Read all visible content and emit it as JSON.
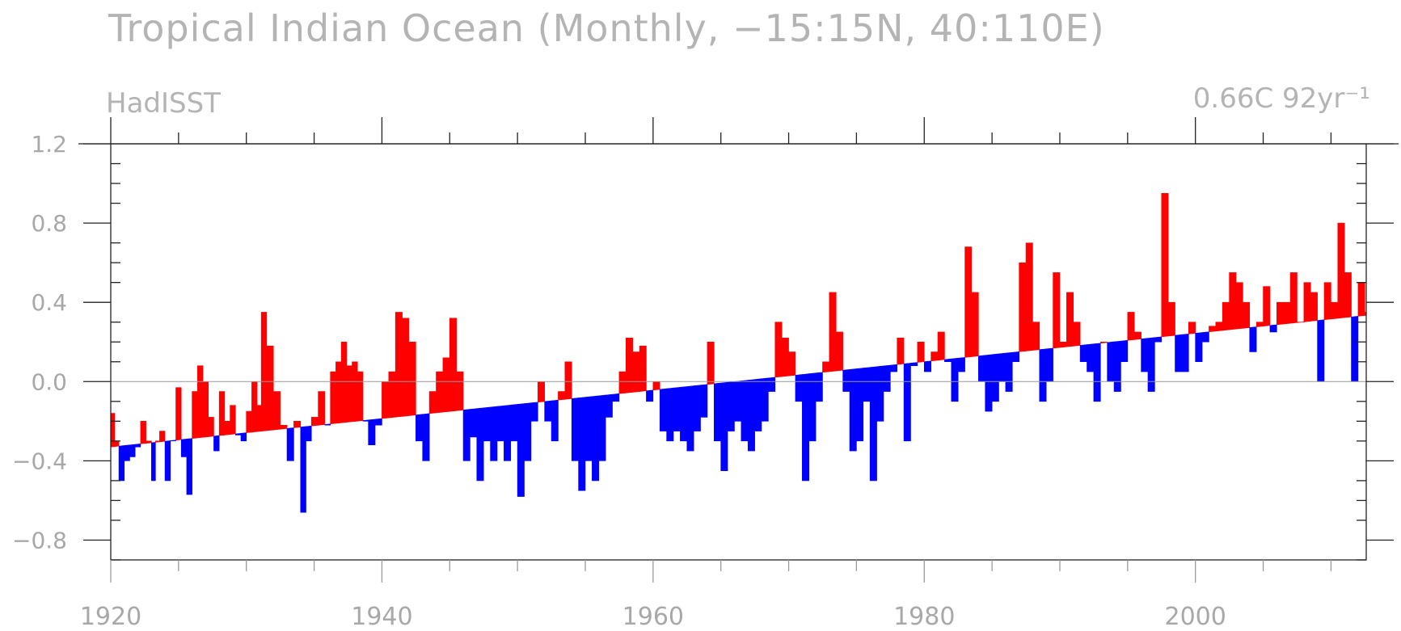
{
  "chart_data": {
    "type": "area",
    "title": "Tropical Indian Ocean (Monthly, −15:15N, 40:110E)",
    "subtitle_left": "HadISST",
    "subtitle_right": "0.66C 92yr⁻¹",
    "xlim": [
      1920,
      2012.6
    ],
    "ylim": [
      -0.9,
      1.2
    ],
    "x_ticks": [
      1920,
      1940,
      1960,
      1980,
      2000
    ],
    "x_tick_labels": [
      "1920",
      "1940",
      "1960",
      "1980",
      "2000"
    ],
    "y_ticks": [
      1.2,
      0.8,
      0.4,
      0.0,
      -0.4,
      -0.8
    ],
    "y_tick_labels": [
      "1.2",
      "0.8",
      "0.4",
      "0.0",
      "−0.4",
      "−0.8"
    ],
    "trend": {
      "x": [
        1920,
        2012
      ],
      "y": [
        -0.33,
        0.33
      ]
    },
    "zero_line": 0.0,
    "colors": {
      "above_trend": "#ff0000",
      "below_trend": "#0000ff",
      "axis": "#222222",
      "text": "#b4b4b4",
      "zero_line": "#999999"
    },
    "series": [
      {
        "x": [
          1920.0,
          1920.3,
          1920.6,
          1921.0,
          1921.4,
          1921.8,
          1922.2,
          1922.6,
          1923.0,
          1923.3,
          1923.6,
          1924.0,
          1924.4,
          1924.8,
          1925.2,
          1925.6,
          1926.0,
          1926.4,
          1926.8,
          1927.2,
          1927.6,
          1928.0,
          1928.4,
          1928.8,
          1929.2,
          1929.6,
          1930.0,
          1930.4,
          1930.8,
          1931.1,
          1931.5,
          1932.0,
          1932.5,
          1933.0,
          1933.5,
          1934.0,
          1934.4,
          1934.8,
          1935.3,
          1935.8,
          1936.2,
          1936.6,
          1937.0,
          1937.4,
          1937.8,
          1938.2,
          1938.6,
          1939.0,
          1939.5,
          1940.0,
          1940.5,
          1941.0,
          1941.5,
          1942.0,
          1942.5,
          1943.0,
          1943.5,
          1944.0,
          1944.5,
          1945.0,
          1945.5,
          1946.0,
          1946.5,
          1947.0,
          1947.5,
          1948.0,
          1948.5,
          1949.0,
          1949.5,
          1950.0,
          1950.5,
          1951.0,
          1951.5,
          1952.0,
          1952.5,
          1953.0,
          1953.5,
          1954.0,
          1954.5,
          1955.0,
          1955.5,
          1956.0,
          1956.5,
          1957.0,
          1957.5,
          1958.0,
          1958.5,
          1959.0,
          1959.5,
          1960.0,
          1960.5,
          1961.0,
          1961.5,
          1962.0,
          1962.5,
          1963.0,
          1963.5,
          1964.0,
          1964.5,
          1965.0,
          1965.5,
          1966.0,
          1966.5,
          1967.0,
          1967.5,
          1968.0,
          1968.5,
          1969.0,
          1969.5,
          1970.0,
          1970.5,
          1971.0,
          1971.5,
          1972.0,
          1972.5,
          1973.0,
          1973.5,
          1974.0,
          1974.5,
          1975.0,
          1975.5,
          1976.0,
          1976.5,
          1977.0,
          1977.5,
          1978.0,
          1978.5,
          1979.0,
          1979.5,
          1980.0,
          1980.5,
          1981.0,
          1981.5,
          1982.0,
          1982.5,
          1983.0,
          1983.5,
          1984.0,
          1984.5,
          1985.0,
          1985.5,
          1986.0,
          1986.5,
          1987.0,
          1987.5,
          1988.0,
          1988.5,
          1989.0,
          1989.5,
          1990.0,
          1990.5,
          1991.0,
          1991.5,
          1992.0,
          1992.5,
          1993.0,
          1993.5,
          1994.0,
          1994.5,
          1995.0,
          1995.5,
          1996.0,
          1996.5,
          1997.0,
          1997.5,
          1998.0,
          1998.5,
          1999.0,
          1999.5,
          2000.0,
          2000.5,
          2001.0,
          2001.5,
          2002.0,
          2002.5,
          2003.0,
          2003.5,
          2004.0,
          2004.5,
          2005.0,
          2005.5,
          2006.0,
          2006.5,
          2007.0,
          2007.5,
          2008.0,
          2008.5,
          2009.0,
          2009.5,
          2010.0,
          2010.5,
          2011.0,
          2011.5,
          2012.0,
          2012.5
        ],
        "y": [
          -0.16,
          -0.3,
          -0.5,
          -0.4,
          -0.38,
          -0.33,
          -0.2,
          -0.3,
          -0.5,
          -0.3,
          -0.25,
          -0.5,
          -0.3,
          -0.03,
          -0.38,
          -0.57,
          -0.05,
          0.08,
          0.0,
          -0.18,
          -0.35,
          -0.05,
          -0.2,
          -0.12,
          -0.27,
          -0.3,
          -0.15,
          0.0,
          -0.12,
          0.35,
          0.18,
          -0.05,
          -0.22,
          -0.4,
          -0.2,
          -0.66,
          -0.3,
          -0.18,
          -0.05,
          -0.22,
          0.05,
          0.1,
          0.2,
          0.08,
          0.1,
          0.05,
          -0.2,
          -0.32,
          -0.22,
          0.0,
          0.05,
          0.35,
          0.32,
          0.2,
          -0.3,
          -0.4,
          -0.05,
          0.05,
          0.12,
          0.32,
          0.05,
          -0.4,
          -0.28,
          -0.5,
          -0.3,
          -0.4,
          -0.3,
          -0.4,
          -0.3,
          -0.58,
          -0.4,
          -0.2,
          0.0,
          -0.2,
          -0.3,
          -0.05,
          0.1,
          -0.4,
          -0.55,
          -0.4,
          -0.5,
          -0.4,
          -0.18,
          -0.1,
          0.05,
          0.22,
          0.15,
          0.18,
          -0.1,
          0.0,
          -0.25,
          -0.3,
          -0.25,
          -0.3,
          -0.35,
          -0.25,
          -0.18,
          0.2,
          -0.3,
          -0.45,
          -0.25,
          -0.2,
          -0.3,
          -0.35,
          -0.25,
          -0.2,
          -0.05,
          0.3,
          0.22,
          0.15,
          -0.1,
          -0.5,
          -0.3,
          -0.1,
          0.1,
          0.45,
          0.25,
          -0.05,
          -0.35,
          -0.3,
          -0.1,
          -0.5,
          -0.2,
          -0.05,
          0.05,
          0.22,
          -0.3,
          0.08,
          0.2,
          0.05,
          0.15,
          0.25,
          0.1,
          -0.1,
          0.05,
          0.68,
          0.45,
          0.0,
          -0.15,
          -0.1,
          0.0,
          -0.05,
          0.1,
          0.6,
          0.7,
          0.3,
          -0.1,
          0.0,
          0.55,
          0.2,
          0.45,
          0.3,
          0.1,
          0.05,
          -0.1,
          0.2,
          0.0,
          -0.05,
          0.1,
          0.35,
          0.25,
          0.05,
          -0.05,
          0.2,
          0.95,
          0.4,
          0.05,
          0.05,
          0.3,
          0.1,
          0.2,
          0.28,
          0.3,
          0.4,
          0.55,
          0.5,
          0.4,
          0.15,
          0.3,
          0.48,
          0.25,
          0.4,
          0.4,
          0.55,
          0.3,
          0.5,
          0.45,
          0.0,
          0.5,
          0.4,
          0.8,
          0.55,
          0.0,
          0.5,
          0.35
        ]
      }
    ]
  }
}
